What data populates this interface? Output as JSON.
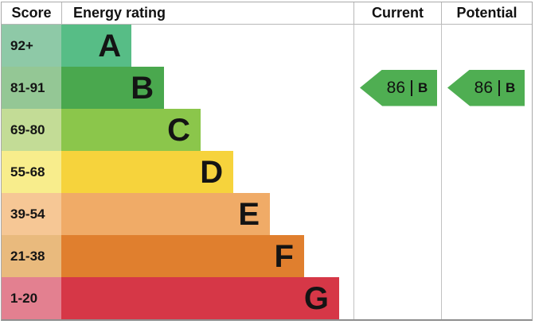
{
  "headers": {
    "score": "Score",
    "energy_rating": "Energy rating",
    "current": "Current",
    "potential": "Potential"
  },
  "bands": [
    {
      "letter": "A",
      "score_range": "92+",
      "bar_color": "#57bd86",
      "score_bg": "#8ec9a7",
      "width_pct": 24.0
    },
    {
      "letter": "B",
      "score_range": "81-91",
      "bar_color": "#4aa84e",
      "score_bg": "#94c795",
      "width_pct": 35.2
    },
    {
      "letter": "C",
      "score_range": "69-80",
      "bar_color": "#8bc64b",
      "score_bg": "#c3dc96",
      "width_pct": 47.7
    },
    {
      "letter": "D",
      "score_range": "55-68",
      "bar_color": "#f6d33c",
      "score_bg": "#f8ed8c",
      "width_pct": 58.9
    },
    {
      "letter": "E",
      "score_range": "39-54",
      "bar_color": "#f0ab67",
      "score_bg": "#f6c795",
      "width_pct": 71.4
    },
    {
      "letter": "F",
      "score_range": "21-38",
      "bar_color": "#e07f2e",
      "score_bg": "#e9ba7d",
      "width_pct": 83.1
    },
    {
      "letter": "G",
      "score_range": "1-20",
      "bar_color": "#d63747",
      "score_bg": "#e38090",
      "width_pct": 95.1
    }
  ],
  "current": {
    "value": "86",
    "separator": "|",
    "band": "B",
    "arrow_color": "#4fae52"
  },
  "potential": {
    "value": "86",
    "separator": "|",
    "band": "B",
    "arrow_color": "#4fae52"
  },
  "chart_data": {
    "type": "bar",
    "title": "Energy efficiency rating chart (EPC)",
    "column_headers": [
      "Score",
      "Energy rating",
      "Current",
      "Potential"
    ],
    "categories": [
      "A",
      "B",
      "C",
      "D",
      "E",
      "F",
      "G"
    ],
    "score_ranges": [
      "92+",
      "81-91",
      "69-80",
      "55-68",
      "39-54",
      "21-38",
      "1-20"
    ],
    "bar_relative_widths_pct": [
      24.0,
      35.2,
      47.7,
      58.9,
      71.4,
      83.1,
      95.1
    ],
    "bar_colors": [
      "#57bd86",
      "#4aa84e",
      "#8bc64b",
      "#f6d33c",
      "#f0ab67",
      "#e07f2e",
      "#d63747"
    ],
    "score_cell_colors": [
      "#8ec9a7",
      "#94c795",
      "#c3dc96",
      "#f8ed8c",
      "#f6c795",
      "#e9ba7d",
      "#e38090"
    ],
    "current": {
      "score": 86,
      "band": "B"
    },
    "potential": {
      "score": 86,
      "band": "B"
    },
    "legend_position": "none",
    "grid": false
  }
}
